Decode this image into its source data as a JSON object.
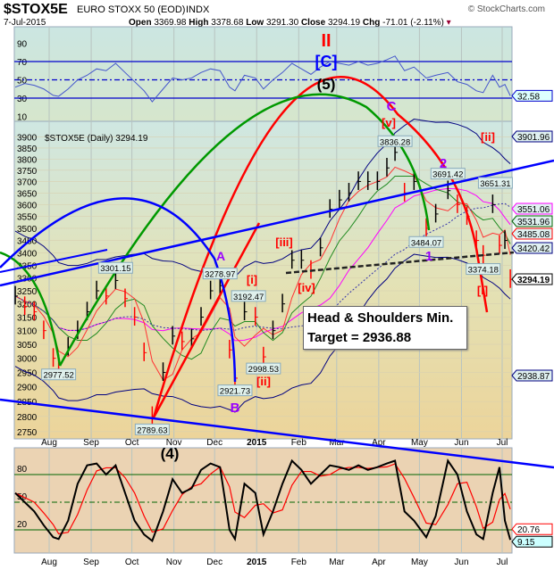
{
  "header": {
    "symbol": "$STOX5E",
    "name": "EURO STOXX 50 (EOD)",
    "exchange": "INDX",
    "watermark": "© StockCharts.com",
    "date": "7-Jul-2015",
    "open_label": "Open",
    "open": "3369.98",
    "high_label": "High",
    "high": "3378.68",
    "low_label": "Low",
    "low": "3291.30",
    "close_label": "Close",
    "close": "3294.19",
    "chg_label": "Chg",
    "chg": "-71.01 (-2.11%)"
  },
  "colors": {
    "up": "#000000",
    "down": "#ff0000",
    "accent_blue": "#0000ff",
    "wave_purple": "#9900ff",
    "wave_red": "#ff0000"
  },
  "chart_data": [
    {
      "type": "line",
      "panel": "top-indicator",
      "ylim": [
        0,
        100
      ],
      "yticks": [
        "10",
        "30",
        "50",
        "70",
        "90"
      ],
      "reference_lines": [
        30,
        50,
        70
      ],
      "last_value_label": "32.58",
      "x": [
        "2014-07-07",
        "2014-07-14",
        "2014-07-21",
        "2014-07-28",
        "2014-08-04",
        "2014-08-08",
        "2014-08-15",
        "2014-08-22",
        "2014-08-29",
        "2014-09-05",
        "2014-09-12",
        "2014-09-19",
        "2014-09-26",
        "2014-10-03",
        "2014-10-10",
        "2014-10-16",
        "2014-10-24",
        "2014-10-31",
        "2014-11-07",
        "2014-11-14",
        "2014-11-21",
        "2014-11-28",
        "2014-12-05",
        "2014-12-12",
        "2014-12-16",
        "2014-12-23",
        "2014-12-31",
        "2015-01-06",
        "2015-01-13",
        "2015-01-20",
        "2015-01-27",
        "2015-02-03",
        "2015-02-10",
        "2015-02-17",
        "2015-02-24",
        "2015-03-03",
        "2015-03-10",
        "2015-03-17",
        "2015-03-24",
        "2015-03-31",
        "2015-04-07",
        "2015-04-13",
        "2015-04-20",
        "2015-04-27",
        "2015-05-06",
        "2015-05-13",
        "2015-05-22",
        "2015-05-29",
        "2015-06-05",
        "2015-06-12",
        "2015-06-17",
        "2015-06-24",
        "2015-06-29",
        "2015-07-03",
        "2015-07-07"
      ],
      "values": [
        42,
        46,
        44,
        40,
        33,
        32,
        40,
        50,
        55,
        62,
        60,
        68,
        58,
        48,
        38,
        26,
        40,
        52,
        50,
        52,
        58,
        62,
        60,
        42,
        38,
        55,
        52,
        40,
        50,
        58,
        68,
        62,
        56,
        64,
        70,
        68,
        66,
        70,
        66,
        68,
        72,
        76,
        60,
        64,
        52,
        55,
        58,
        48,
        45,
        38,
        36,
        55,
        42,
        45,
        32.58
      ]
    },
    {
      "type": "line",
      "panel": "price",
      "title": "$STOX5E (Daily) 3294.19",
      "scale": "log",
      "ylim": [
        2720,
        3960
      ],
      "yticks": [
        "2750",
        "2800",
        "2850",
        "2900",
        "2950",
        "3000",
        "3050",
        "3100",
        "3150",
        "3200",
        "3250",
        "3300",
        "3350",
        "3400",
        "3450",
        "3500",
        "3550",
        "3600",
        "3650",
        "3700",
        "3750",
        "3800",
        "3850",
        "3900"
      ],
      "xticks": [
        "Aug",
        "Sep",
        "Oct",
        "Nov",
        "Dec",
        "2015",
        "Feb",
        "Mar",
        "Apr",
        "May",
        "Jun",
        "Jul"
      ],
      "close_series": [
        3230,
        3190,
        3170,
        3100,
        3000,
        2977.52,
        3040,
        3100,
        3170,
        3250,
        3230,
        3290,
        3220,
        3150,
        3020,
        2800,
        2950,
        3080,
        3060,
        3070,
        3150,
        3250,
        3270,
        3030,
        2930,
        3170,
        3150,
        3005,
        3100,
        3200,
        3370,
        3370,
        3330,
        3420,
        3580,
        3620,
        3650,
        3700,
        3700,
        3700,
        3760,
        3830,
        3650,
        3700,
        3500,
        3560,
        3660,
        3600,
        3550,
        3450,
        3390,
        3600,
        3430,
        3450,
        3294.19
      ],
      "pivot_labels": [
        {
          "date": "2014-08-08",
          "value": "2977.52"
        },
        {
          "date": "2014-09-19",
          "value": "3301.15"
        },
        {
          "date": "2014-10-16",
          "value": "2789.63"
        },
        {
          "date": "2014-12-05",
          "value": "3278.97"
        },
        {
          "date": "2014-12-16",
          "value": "2921.73"
        },
        {
          "date": "2014-12-26",
          "value": "3192.47"
        },
        {
          "date": "2015-01-06",
          "value": "2998.53"
        },
        {
          "date": "2015-04-13",
          "value": "3836.28"
        },
        {
          "date": "2015-05-06",
          "value": "3484.07"
        },
        {
          "date": "2015-05-22",
          "value": "3691.42"
        },
        {
          "date": "2015-06-17",
          "value": "3374.18"
        },
        {
          "date": "2015-06-26",
          "value": "3651.31"
        }
      ],
      "right_tags": [
        {
          "value": "3901.96",
          "color": "#000080"
        },
        {
          "value": "3551.06",
          "color": "#ff00ff"
        },
        {
          "value": "3531.96",
          "color": "#006400"
        },
        {
          "value": "3485.08",
          "color": "#ff0000"
        },
        {
          "value": "3420.42",
          "color": "#000080"
        },
        {
          "value": "3294.19",
          "color": "#000000"
        },
        {
          "value": "2938.87",
          "color": "#000080"
        }
      ],
      "wave_labels": [
        {
          "text": "II",
          "color": "#ff0000"
        },
        {
          "text": "[C]",
          "color": "#0000ff"
        },
        {
          "text": "(5)",
          "color": "#000000"
        },
        {
          "text": "C",
          "color": "#9900ff"
        },
        {
          "text": "[v]",
          "color": "#ff0000"
        },
        {
          "text": "2",
          "color": "#9900ff"
        },
        {
          "text": "[ii]",
          "color": "#ff0000"
        },
        {
          "text": "1",
          "color": "#9900ff"
        },
        {
          "text": "[i]",
          "color": "#ff0000"
        },
        {
          "text": "[iii]",
          "color": "#ff0000"
        },
        {
          "text": "[iv]",
          "color": "#ff0000"
        },
        {
          "text": "[ii]",
          "color": "#ff0000"
        },
        {
          "text": "A",
          "color": "#9900ff"
        },
        {
          "text": "[i]",
          "color": "#ff0000"
        },
        {
          "text": "B",
          "color": "#9900ff"
        },
        {
          "text": "(4)",
          "color": "#000000"
        }
      ],
      "annotation": {
        "line1": "Head & Shoulders Min.",
        "line2": "Target = 2936.88"
      }
    },
    {
      "type": "line",
      "panel": "bottom-indicator",
      "ylim": [
        -5,
        110
      ],
      "yticks": [
        "20",
        "50",
        "80"
      ],
      "reference_lines": [
        20,
        50,
        80
      ],
      "last_value_label": "9.15",
      "signal_last_value_label": "20.76",
      "values": [
        60,
        50,
        40,
        25,
        12,
        10,
        30,
        70,
        90,
        92,
        80,
        90,
        60,
        30,
        15,
        8,
        40,
        75,
        60,
        65,
        85,
        92,
        88,
        20,
        10,
        70,
        60,
        15,
        40,
        70,
        95,
        85,
        70,
        80,
        90,
        88,
        85,
        90,
        85,
        88,
        92,
        95,
        40,
        30,
        12,
        35,
        95,
        80,
        40,
        15,
        10,
        60,
        88,
        30,
        9.15
      ]
    }
  ]
}
